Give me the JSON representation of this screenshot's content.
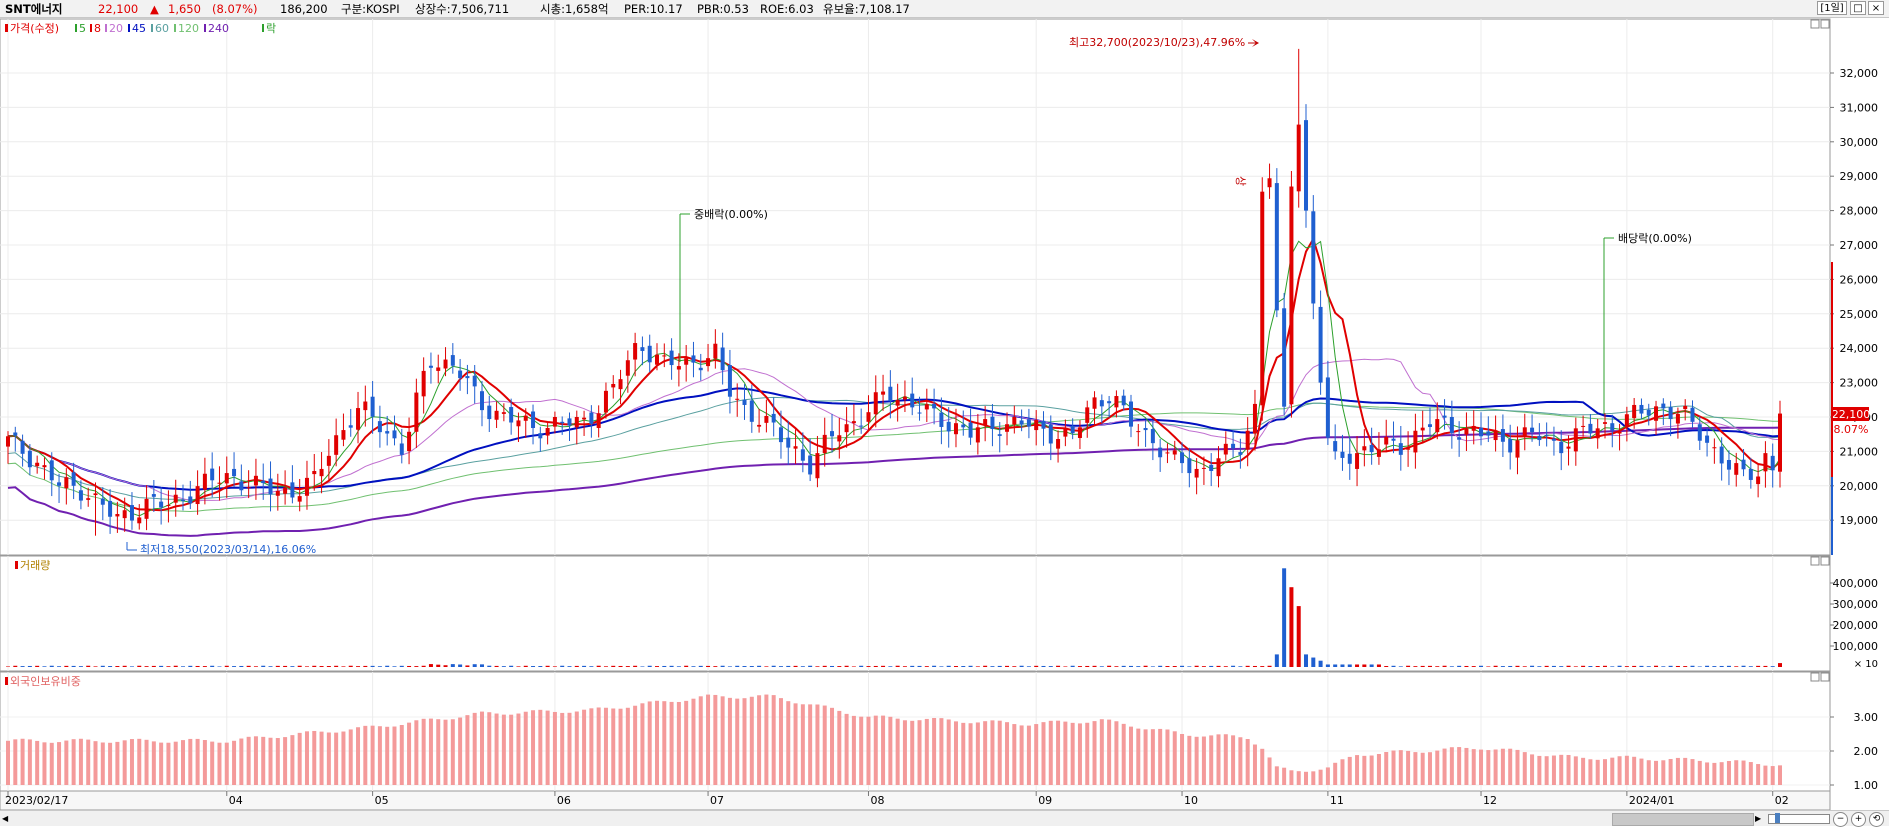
{
  "header": {
    "stock_name": "SNT에너지",
    "price": "22,100",
    "change_arrow": "▲",
    "change": "1,650",
    "change_pct": "(8.07%)",
    "volume": "186,200",
    "market": "구분:KOSPI",
    "shares": "상장수:7,506,711",
    "market_cap": "시총:1,658억",
    "per": "PER:10.17",
    "pbr": "PBR:0.53",
    "roe": "ROE:6.03",
    "retention": "유보율:7,108.17",
    "period_button": "[1일]"
  },
  "colors": {
    "up": "#e00000",
    "down": "#1f5fd0",
    "foreign_bar": "#f49a9a",
    "ma5": "#2ca02c",
    "ma8": "#e00000",
    "ma20": "#c070d0",
    "ma45": "#0010c0",
    "ma60": "#5aa0a0",
    "ma120": "#70c070",
    "ma240": "#7020b0"
  },
  "legend": {
    "price_label": "가격(수정)",
    "ma5": "5",
    "ma8": "8",
    "ma20": "20",
    "ma45": "45",
    "ma60": "60",
    "ma120": "120",
    "ma240": "240",
    "ex_label": "락"
  },
  "annotations": {
    "high": "최고32,700(2023/10/23),47.96%",
    "low": "최저18,550(2023/03/14),16.06%",
    "exdiv1": "중배락(0.00%)",
    "exdiv2": "배당락(0.00%)",
    "upper_limit": "상"
  },
  "current_price_tag": {
    "price": "22,100",
    "pct": "8.07%"
  },
  "chart_data": [
    {
      "type": "candlestick",
      "name": "가격(수정)",
      "start_date": "2023/02/17",
      "x_labels": [
        "2023/02/17",
        "04",
        "05",
        "06",
        "07",
        "08",
        "09",
        "10",
        "11",
        "12",
        "2024/01",
        "02"
      ],
      "y_ticks": [
        "32,000",
        "31,000",
        "30,000",
        "29,000",
        "28,000",
        "27,000",
        "26,000",
        "25,000",
        "24,000",
        "23,000",
        "22,000",
        "21,000",
        "20,000",
        "19,000"
      ],
      "ylim": [
        18500,
        33000
      ],
      "key_points": [
        {
          "date": "2023/02/17",
          "close": 21300
        },
        {
          "date": "2023/03/14",
          "low": 18550
        },
        {
          "date": "2023/05/10",
          "close": 23700
        },
        {
          "date": "2023/07/05",
          "close": 24200
        },
        {
          "date": "2023/07/26",
          "close": 20500
        },
        {
          "date": "2023/08/10",
          "close": 22800
        },
        {
          "date": "2023/10/04",
          "close": 20400
        },
        {
          "date": "2023/10/23",
          "high": 32700,
          "close": 30500
        },
        {
          "date": "2023/11/01",
          "close": 20500
        },
        {
          "date": "2024/01/19",
          "close": 22500
        },
        {
          "date": "2024/02/01",
          "close": 20500
        },
        {
          "date": "2024/02/05",
          "close": 22100
        }
      ]
    },
    {
      "type": "bar",
      "name": "거래량",
      "y_ticks": [
        "400,000",
        "300,000",
        "200,000",
        "100,000"
      ],
      "y_unit": "× 10",
      "ylim": [
        0,
        480000
      ],
      "key_points": [
        {
          "date": "2023/10/20",
          "value": 60000
        },
        {
          "date": "2023/10/23",
          "value": 470000
        },
        {
          "date": "2023/10/24",
          "value": 380000
        },
        {
          "date": "2023/10/25",
          "value": 290000
        },
        {
          "date": "2023/10/26",
          "value": 60000
        },
        {
          "date": "2024/02/05",
          "value": 18620
        }
      ]
    },
    {
      "type": "bar",
      "name": "외국인보유비중",
      "y_ticks": [
        "3.00",
        "2.00",
        "1.00"
      ],
      "ylim": [
        1.0,
        3.7
      ],
      "key_points": [
        {
          "date": "2023/02/17",
          "value": 2.3
        },
        {
          "date": "2023/04/17",
          "value": 2.7
        },
        {
          "date": "2023/05/10",
          "value": 3.1
        },
        {
          "date": "2023/07/03",
          "value": 3.6
        },
        {
          "date": "2023/08/15",
          "value": 3.0
        },
        {
          "date": "2023/10/18",
          "value": 2.4
        },
        {
          "date": "2023/10/26",
          "value": 1.4
        },
        {
          "date": "2023/12/01",
          "value": 2.1
        },
        {
          "date": "2024/02/05",
          "value": 1.6
        }
      ]
    }
  ]
}
